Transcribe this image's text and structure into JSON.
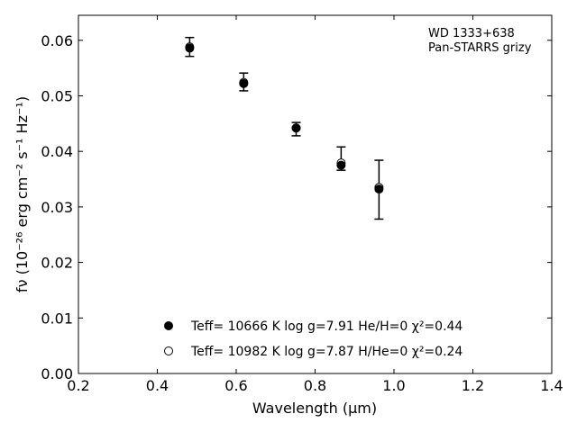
{
  "chart_data": {
    "type": "scatter",
    "xlabel": "Wavelength (μm)",
    "ylabel": "fν (10⁻²⁶ erg cm⁻² s⁻¹ Hz⁻¹)",
    "xlim": [
      0.2,
      1.4
    ],
    "ylim": [
      0.0,
      0.0645
    ],
    "xticks": [
      0.2,
      0.4,
      0.6,
      0.8,
      1.0,
      1.2,
      1.4
    ],
    "xtick_labels": [
      "0.2",
      "0.4",
      "0.6",
      "0.8",
      "1.0",
      "1.2",
      "1.4"
    ],
    "yticks": [
      0.0,
      0.01,
      0.02,
      0.03,
      0.04,
      0.05,
      0.06
    ],
    "ytick_labels": [
      "0.00",
      "0.01",
      "0.02",
      "0.03",
      "0.04",
      "0.05",
      "0.06"
    ],
    "grid": false,
    "annotation": {
      "line1": "WD 1333+638",
      "line2": "Pan-STARRS grizy"
    },
    "observed": {
      "x": [
        0.482,
        0.619,
        0.752,
        0.866,
        0.962
      ],
      "y": [
        0.0588,
        0.0525,
        0.044,
        0.0387,
        0.0331
      ],
      "yerr": [
        0.0017,
        0.0016,
        0.0012,
        0.0021,
        0.0053
      ]
    },
    "series": [
      {
        "name": "Teff= 10666 K  log g=7.91  He/H=0  χ²=0.44",
        "marker": "filled",
        "x": [
          0.482,
          0.619,
          0.752,
          0.866,
          0.962
        ],
        "y": [
          0.0586,
          0.0522,
          0.0442,
          0.0375,
          0.0332
        ]
      },
      {
        "name": "Teff= 10982 K  log g=7.87  H/He=0  χ²=0.24",
        "marker": "open",
        "x": [
          0.482,
          0.619,
          0.752,
          0.866,
          0.962
        ],
        "y": [
          0.0588,
          0.0524,
          0.0442,
          0.0379,
          0.0335
        ]
      }
    ],
    "legend_position": "bottom-center",
    "colors": {
      "marker": "#000000",
      "axes": "#000000"
    }
  }
}
